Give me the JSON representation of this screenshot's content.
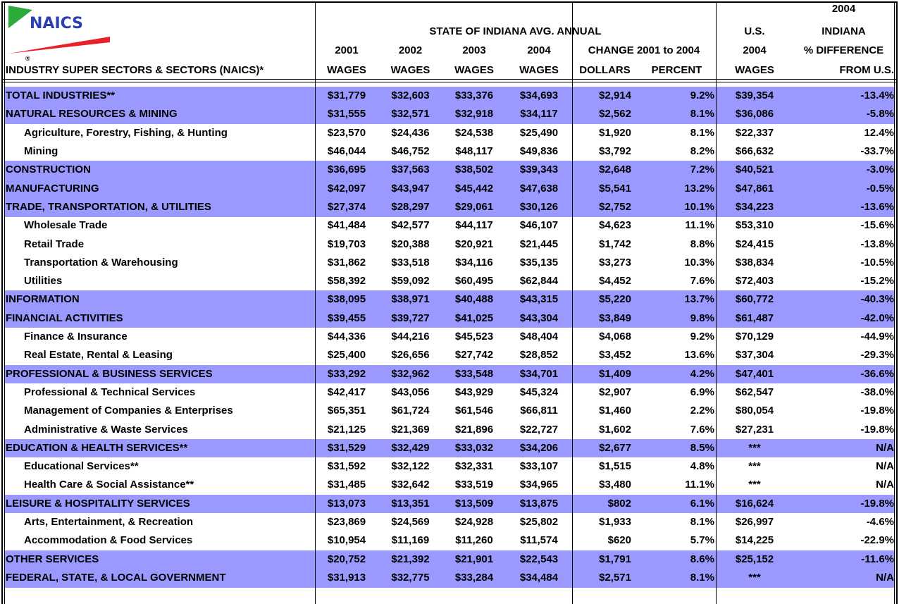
{
  "logo": {
    "text": "NAICS",
    "mark": "®"
  },
  "header": {
    "top": "2004",
    "title": "STATE OF INDIANA AVG. ANNUAL",
    "us": "U.S.",
    "indiana": "INDIANA",
    "years": [
      "2001",
      "2002",
      "2003",
      "2004"
    ],
    "change": "CHANGE 2001 to 2004",
    "us_year": "2004",
    "pct_diff": "% DIFFERENCE",
    "industry": "INDUSTRY SUPER SECTORS & SECTORS (NAICS)*",
    "bottom": [
      "WAGES",
      "WAGES",
      "WAGES",
      "WAGES",
      "DOLLARS",
      "PERCENT",
      "WAGES",
      "FROM U.S."
    ]
  },
  "table": {
    "rows": [
      {
        "label": "TOTAL INDUSTRIES**",
        "super": true,
        "cells": [
          "$31,779",
          "$32,603",
          "$33,376",
          "$34,693",
          "$2,914",
          "9.2%",
          "$39,354",
          "-13.4%"
        ]
      },
      {
        "label": "NATURAL RESOURCES & MINING",
        "super": true,
        "cells": [
          "$31,555",
          "$32,571",
          "$32,918",
          "$34,117",
          "$2,562",
          "8.1%",
          "$36,086",
          "-5.8%"
        ]
      },
      {
        "label": "Agriculture, Forestry, Fishing, & Hunting",
        "super": false,
        "cells": [
          "$23,570",
          "$24,436",
          "$24,538",
          "$25,490",
          "$1,920",
          "8.1%",
          "$22,337",
          "12.4%"
        ]
      },
      {
        "label": "Mining",
        "super": false,
        "cells": [
          "$46,044",
          "$46,752",
          "$48,117",
          "$49,836",
          "$3,792",
          "8.2%",
          "$66,632",
          "-33.7%"
        ]
      },
      {
        "label": "CONSTRUCTION",
        "super": true,
        "cells": [
          "$36,695",
          "$37,563",
          "$38,502",
          "$39,343",
          "$2,648",
          "7.2%",
          "$40,521",
          "-3.0%"
        ]
      },
      {
        "label": "MANUFACTURING",
        "super": true,
        "cells": [
          "$42,097",
          "$43,947",
          "$45,442",
          "$47,638",
          "$5,541",
          "13.2%",
          "$47,861",
          "-0.5%"
        ]
      },
      {
        "label": "TRADE, TRANSPORTATION, & UTILITIES",
        "super": true,
        "cells": [
          "$27,374",
          "$28,297",
          "$29,061",
          "$30,126",
          "$2,752",
          "10.1%",
          "$34,223",
          "-13.6%"
        ]
      },
      {
        "label": "Wholesale Trade",
        "super": false,
        "cells": [
          "$41,484",
          "$42,577",
          "$44,117",
          "$46,107",
          "$4,623",
          "11.1%",
          "$53,310",
          "-15.6%"
        ]
      },
      {
        "label": "Retail Trade",
        "super": false,
        "cells": [
          "$19,703",
          "$20,388",
          "$20,921",
          "$21,445",
          "$1,742",
          "8.8%",
          "$24,415",
          "-13.8%"
        ]
      },
      {
        "label": "Transportation & Warehousing",
        "super": false,
        "cells": [
          "$31,862",
          "$33,518",
          "$34,116",
          "$35,135",
          "$3,273",
          "10.3%",
          "$38,834",
          "-10.5%"
        ]
      },
      {
        "label": "Utilities",
        "super": false,
        "cells": [
          "$58,392",
          "$59,092",
          "$60,495",
          "$62,844",
          "$4,452",
          "7.6%",
          "$72,403",
          "-15.2%"
        ]
      },
      {
        "label": "INFORMATION",
        "super": true,
        "cells": [
          "$38,095",
          "$38,971",
          "$40,488",
          "$43,315",
          "$5,220",
          "13.7%",
          "$60,772",
          "-40.3%"
        ]
      },
      {
        "label": "FINANCIAL ACTIVITIES",
        "super": true,
        "cells": [
          "$39,455",
          "$39,727",
          "$41,025",
          "$43,304",
          "$3,849",
          "9.8%",
          "$61,487",
          "-42.0%"
        ]
      },
      {
        "label": "Finance & Insurance",
        "super": false,
        "cells": [
          "$44,336",
          "$44,216",
          "$45,523",
          "$48,404",
          "$4,068",
          "9.2%",
          "$70,129",
          "-44.9%"
        ]
      },
      {
        "label": "Real Estate, Rental & Leasing",
        "super": false,
        "cells": [
          "$25,400",
          "$26,656",
          "$27,742",
          "$28,852",
          "$3,452",
          "13.6%",
          "$37,304",
          "-29.3%"
        ]
      },
      {
        "label": "PROFESSIONAL & BUSINESS SERVICES",
        "super": true,
        "cells": [
          "$33,292",
          "$32,962",
          "$33,548",
          "$34,701",
          "$1,409",
          "4.2%",
          "$47,401",
          "-36.6%"
        ]
      },
      {
        "label": "Professional & Technical Services",
        "super": false,
        "cells": [
          "$42,417",
          "$43,056",
          "$43,929",
          "$45,324",
          "$2,907",
          "6.9%",
          "$62,547",
          "-38.0%"
        ]
      },
      {
        "label": "Management of Companies & Enterprises",
        "super": false,
        "cells": [
          "$65,351",
          "$61,724",
          "$61,546",
          "$66,811",
          "$1,460",
          "2.2%",
          "$80,054",
          "-19.8%"
        ]
      },
      {
        "label": "Administrative & Waste Services",
        "super": false,
        "cells": [
          "$21,125",
          "$21,369",
          "$21,896",
          "$22,727",
          "$1,602",
          "7.6%",
          "$27,231",
          "-19.8%"
        ]
      },
      {
        "label": "EDUCATION & HEALTH SERVICES**",
        "super": true,
        "cells": [
          "$31,529",
          "$32,429",
          "$33,032",
          "$34,206",
          "$2,677",
          "8.5%",
          "***",
          "N/A"
        ]
      },
      {
        "label": "Educational Services**",
        "super": false,
        "cells": [
          "$31,592",
          "$32,122",
          "$32,331",
          "$33,107",
          "$1,515",
          "4.8%",
          "***",
          "N/A"
        ]
      },
      {
        "label": "Health Care & Social Assistance**",
        "super": false,
        "cells": [
          "$31,485",
          "$32,642",
          "$33,519",
          "$34,965",
          "$3,480",
          "11.1%",
          "***",
          "N/A"
        ]
      },
      {
        "label": "LEISURE & HOSPITALITY SERVICES",
        "super": true,
        "cells": [
          "$13,073",
          "$13,351",
          "$13,509",
          "$13,875",
          "$802",
          "6.1%",
          "$16,624",
          "-19.8%"
        ]
      },
      {
        "label": "Arts, Entertainment, & Recreation",
        "super": false,
        "cells": [
          "$23,869",
          "$24,569",
          "$24,928",
          "$25,802",
          "$1,933",
          "8.1%",
          "$26,997",
          "-4.6%"
        ]
      },
      {
        "label": "Accommodation & Food Services",
        "super": false,
        "cells": [
          "$10,954",
          "$11,169",
          "$11,260",
          "$11,574",
          "$620",
          "5.7%",
          "$14,225",
          "-22.9%"
        ]
      },
      {
        "label": "OTHER SERVICES",
        "super": true,
        "cells": [
          "$20,752",
          "$21,392",
          "$21,901",
          "$22,543",
          "$1,791",
          "8.6%",
          "$25,152",
          "-11.6%"
        ]
      },
      {
        "label": "FEDERAL, STATE, & LOCAL GOVERNMENT",
        "super": true,
        "cells": [
          "$31,913",
          "$32,775",
          "$33,284",
          "$34,484",
          "$2,571",
          "8.1%",
          "***",
          "N/A"
        ]
      }
    ]
  }
}
